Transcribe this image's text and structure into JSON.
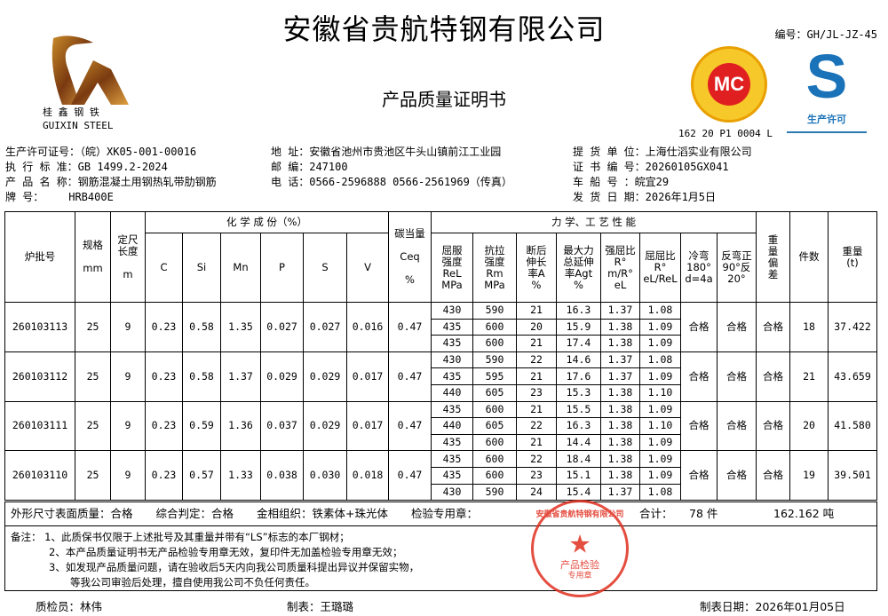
{
  "header": {
    "company": "安徽省贵航特钢有限公司",
    "doc_title": "产品质量证明书",
    "doc_code": "编号：GH/JL-JZ-45",
    "logo_cn": "桂 鑫 钢 铁",
    "logo_en": "GUIXIN  STEEL",
    "mc_label": "MC",
    "mc_number": "162 20 P1 0004 L",
    "qs_label": "生产许可",
    "qs_letter": "S"
  },
  "info": {
    "license": "生产许可证号：（皖）XK05-001-00016",
    "standard": "执 行 标 准：GB 1499.2-2024",
    "product": "产 品 名 称：钢筋混凝土用钢热轧带肋钢筋",
    "grade_label": "牌        号：",
    "grade": "HRB400E",
    "address": "地   址：安徽省池州市贵池区牛头山镇前江工业园",
    "postcode": "邮   编：247100",
    "phone": "电   话：0566-2596888  0566-2561969（传真）",
    "consignee": "提 货 单 位：上海仕滔实业有限公司",
    "cert_no": "证 书 编 号：20260105GX041",
    "vehicle": "车  船  号 ：皖宜29",
    "ship_date": "发 货 日 期：2026年1月5日"
  },
  "table": {
    "headers": {
      "batch": "炉批号",
      "spec": "规格",
      "spec_unit": "mm",
      "length": "定尺长度",
      "length_unit": "m",
      "chem": "化 学 成 份（%）",
      "c": "C",
      "si": "Si",
      "mn": "Mn",
      "p": "P",
      "s": "S",
      "v": "V",
      "ceq": "碳当量",
      "ceq_sym": "Ceq",
      "ceq_unit": "%",
      "mech": "力 学、工 艺 性 能",
      "rel": "屈服强度ReL MPa",
      "rm": "抗拉强度Rm MPa",
      "a": "断后伸长率A %",
      "agt": "最大力总延伸率Agt %",
      "ratio1": "强屈比R° m/R° eL",
      "ratio2": "屈屈比R° eL/ReL",
      "cold": "冷弯180° d=4a",
      "rev": "反弯正90°反20°",
      "dev": "重量偏差",
      "pcs": "件数",
      "weight": "重量(t)"
    },
    "rows": [
      {
        "batch": "260103113",
        "spec": "25",
        "length": "9",
        "c": "0.23",
        "si": "0.58",
        "mn": "1.35",
        "p": "0.027",
        "s": "0.027",
        "v": "0.016",
        "ceq": "0.47",
        "mech": [
          [
            "430",
            "590",
            "21",
            "16.3",
            "1.37",
            "1.08"
          ],
          [
            "435",
            "600",
            "20",
            "15.9",
            "1.38",
            "1.09"
          ],
          [
            "435",
            "600",
            "21",
            "17.4",
            "1.38",
            "1.09"
          ]
        ],
        "cold": "合格",
        "rev": "合格",
        "dev": "合格",
        "pcs": "18",
        "weight": "37.422"
      },
      {
        "batch": "260103112",
        "spec": "25",
        "length": "9",
        "c": "0.23",
        "si": "0.58",
        "mn": "1.37",
        "p": "0.029",
        "s": "0.029",
        "v": "0.017",
        "ceq": "0.47",
        "mech": [
          [
            "430",
            "590",
            "22",
            "14.6",
            "1.37",
            "1.08"
          ],
          [
            "435",
            "595",
            "21",
            "17.6",
            "1.37",
            "1.09"
          ],
          [
            "440",
            "605",
            "23",
            "15.3",
            "1.38",
            "1.10"
          ]
        ],
        "cold": "合格",
        "rev": "合格",
        "dev": "合格",
        "pcs": "21",
        "weight": "43.659"
      },
      {
        "batch": "260103111",
        "spec": "25",
        "length": "9",
        "c": "0.23",
        "si": "0.59",
        "mn": "1.36",
        "p": "0.037",
        "s": "0.029",
        "v": "0.017",
        "ceq": "0.47",
        "mech": [
          [
            "435",
            "600",
            "21",
            "15.5",
            "1.38",
            "1.09"
          ],
          [
            "440",
            "605",
            "22",
            "16.3",
            "1.38",
            "1.10"
          ],
          [
            "435",
            "600",
            "21",
            "14.4",
            "1.38",
            "1.09"
          ]
        ],
        "cold": "合格",
        "rev": "合格",
        "dev": "合格",
        "pcs": "20",
        "weight": "41.580"
      },
      {
        "batch": "260103110",
        "spec": "25",
        "length": "9",
        "c": "0.23",
        "si": "0.57",
        "mn": "1.33",
        "p": "0.038",
        "s": "0.030",
        "v": "0.018",
        "ceq": "0.47",
        "mech": [
          [
            "435",
            "600",
            "22",
            "18.4",
            "1.38",
            "1.09"
          ],
          [
            "435",
            "600",
            "23",
            "15.1",
            "1.38",
            "1.09"
          ],
          [
            "430",
            "590",
            "24",
            "15.4",
            "1.37",
            "1.08"
          ]
        ],
        "cold": "合格",
        "rev": "合格",
        "dev": "合格",
        "pcs": "19",
        "weight": "39.501"
      }
    ]
  },
  "summary": {
    "surface": "外形尺寸表面质量：合格",
    "overall": "综合判定：合格",
    "micro": "金相组织：铁素体+珠光体",
    "stamp_label": "检验专用章：",
    "total_label": "合计：",
    "total_pcs": "78 件",
    "total_weight": "162.162  吨"
  },
  "notes": [
    "备注：  1、此质保书仅限于上述批号及其重量并带有“LS”标志的本厂钢材；",
    "2、本产品质量证明书无产品检验专用章无效，复印件无加盖检验专用章无效；",
    "3、如发现产品质量问题，请在验收后5天内向我公司质量科提出异议并保留实物，",
    "等我公司审验后处理，擅自使用我公司不负任何责任。"
  ],
  "stamp": {
    "ring": "安徽省贵航特钢有限公司",
    "line1": "产品检验",
    "line2": "专用章"
  },
  "signatures": {
    "inspector": "质检员：林伟",
    "preparer": "制表：王璐璐",
    "date": "制表日期：2026年01月05日"
  },
  "colors": {
    "stamp": "#e03020",
    "mc_yellow": "#f7c82a",
    "mc_red": "#e02020",
    "qs_blue": "#1a72b8"
  }
}
